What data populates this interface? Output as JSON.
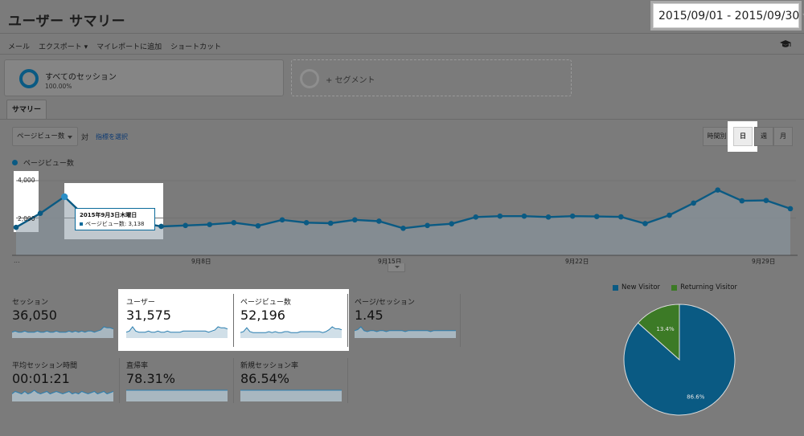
{
  "header": {
    "title": "ユーザー サマリー",
    "date_range": "2015/09/01 - 2015/09/30"
  },
  "actions": [
    "メール",
    "エクスポート ▾",
    "マイレポートに追加",
    "ショートカット"
  ],
  "segments": {
    "all_sessions": {
      "label": "すべてのセッション",
      "percent": "100.00%"
    },
    "add_segment": {
      "label": "+ セグメント"
    }
  },
  "tabs": {
    "summary": "サマリー"
  },
  "controls": {
    "metric_select": "ページビュー数",
    "vs_label": "対",
    "select_metric_link": "指標を選択",
    "granularity": {
      "hourly": "時間別",
      "day": "日",
      "week": "週",
      "month": "月",
      "selected": "日"
    }
  },
  "chart_data": [
    {
      "type": "area",
      "series": [
        {
          "name": "ページビュー数",
          "values": [
            1500,
            2250,
            3138,
            1900,
            1750,
            1800,
            1550,
            1600,
            1650,
            1750,
            1580,
            1900,
            1750,
            1720,
            1900,
            1830,
            1450,
            1600,
            1690,
            2050,
            2100,
            2100,
            2050,
            2100,
            2080,
            2060,
            1700,
            2150,
            2800,
            3500,
            2920,
            2940,
            2500
          ]
        }
      ],
      "x_tick_labels": [
        "...",
        "9月8日",
        "9月15日",
        "9月22日",
        "9月29日"
      ],
      "y_tick_labels": [
        "4,000",
        "2,000"
      ],
      "ylim": [
        0,
        4000
      ],
      "color": "#0a5a83",
      "tooltip": {
        "date": "2015年9月3日木曜日",
        "text": "ページビュー数: 3,138"
      }
    },
    {
      "type": "pie",
      "series": [
        {
          "name": "New Visitor",
          "value": 86.6,
          "label": "86.6%",
          "color": "#0a5a83"
        },
        {
          "name": "Returning Visitor",
          "value": 13.4,
          "label": "13.4%",
          "color": "#3c7a26"
        }
      ],
      "legend_position": "top"
    }
  ],
  "metrics": [
    {
      "label": "セッション",
      "value": "36,050",
      "spark": [
        4,
        5,
        4,
        4,
        5,
        4,
        4,
        4,
        5,
        4,
        4,
        5,
        4,
        4,
        5,
        4,
        4,
        4,
        5,
        4,
        5,
        4,
        5,
        4,
        5,
        5,
        4,
        5,
        6,
        9,
        8,
        8,
        7
      ]
    },
    {
      "label": "ユーザー",
      "value": "31,575",
      "spark": [
        4,
        5,
        9,
        5,
        4,
        4,
        4,
        5,
        4,
        4,
        5,
        4,
        4,
        5,
        4,
        4,
        4,
        4,
        5,
        5,
        5,
        5,
        5,
        5,
        5,
        5,
        4,
        5,
        6,
        9,
        8,
        8,
        7
      ]
    },
    {
      "label": "ページビュー数",
      "value": "52,196",
      "spark": [
        4,
        5,
        9,
        5,
        4,
        4,
        4,
        4,
        4,
        5,
        4,
        5,
        4,
        4,
        5,
        5,
        4,
        4,
        4,
        5,
        5,
        5,
        5,
        5,
        5,
        5,
        4,
        5,
        7,
        10,
        8,
        8,
        7
      ]
    },
    {
      "label": "ページ/セッション",
      "value": "1.45",
      "spark": [
        6,
        7,
        10,
        6,
        5,
        6,
        6,
        5,
        6,
        6,
        5,
        6,
        6,
        6,
        6,
        6,
        5,
        6,
        6,
        6,
        6,
        6,
        6,
        6,
        5,
        6,
        6,
        6,
        6,
        6,
        6,
        6,
        6
      ]
    },
    {
      "label": "平均セッション時間",
      "value": "00:01:21",
      "spark": [
        5,
        7,
        6,
        5,
        7,
        5,
        6,
        8,
        6,
        5,
        6,
        7,
        5,
        6,
        7,
        6,
        5,
        6,
        7,
        5,
        6,
        5,
        7,
        6,
        5,
        6,
        7,
        5,
        6,
        7,
        5,
        6,
        7
      ]
    },
    {
      "label": "直帰率",
      "value": "78.31%",
      "spark": [
        7,
        7,
        7,
        7,
        7,
        7,
        7,
        7,
        7,
        7,
        7,
        7,
        7,
        7,
        7,
        7,
        7,
        7,
        7,
        7,
        7,
        7,
        7,
        7,
        7,
        7,
        7,
        7,
        7,
        7,
        7,
        7,
        7
      ]
    },
    {
      "label": "新規セッション率",
      "value": "86.54%",
      "spark": [
        7,
        7,
        7,
        7,
        7,
        7,
        7,
        7,
        7,
        7,
        7,
        7,
        7,
        7,
        7,
        7,
        7,
        7,
        7,
        7,
        7,
        7,
        7,
        7,
        7,
        7,
        7,
        7,
        7,
        7,
        7,
        7,
        7
      ]
    }
  ]
}
